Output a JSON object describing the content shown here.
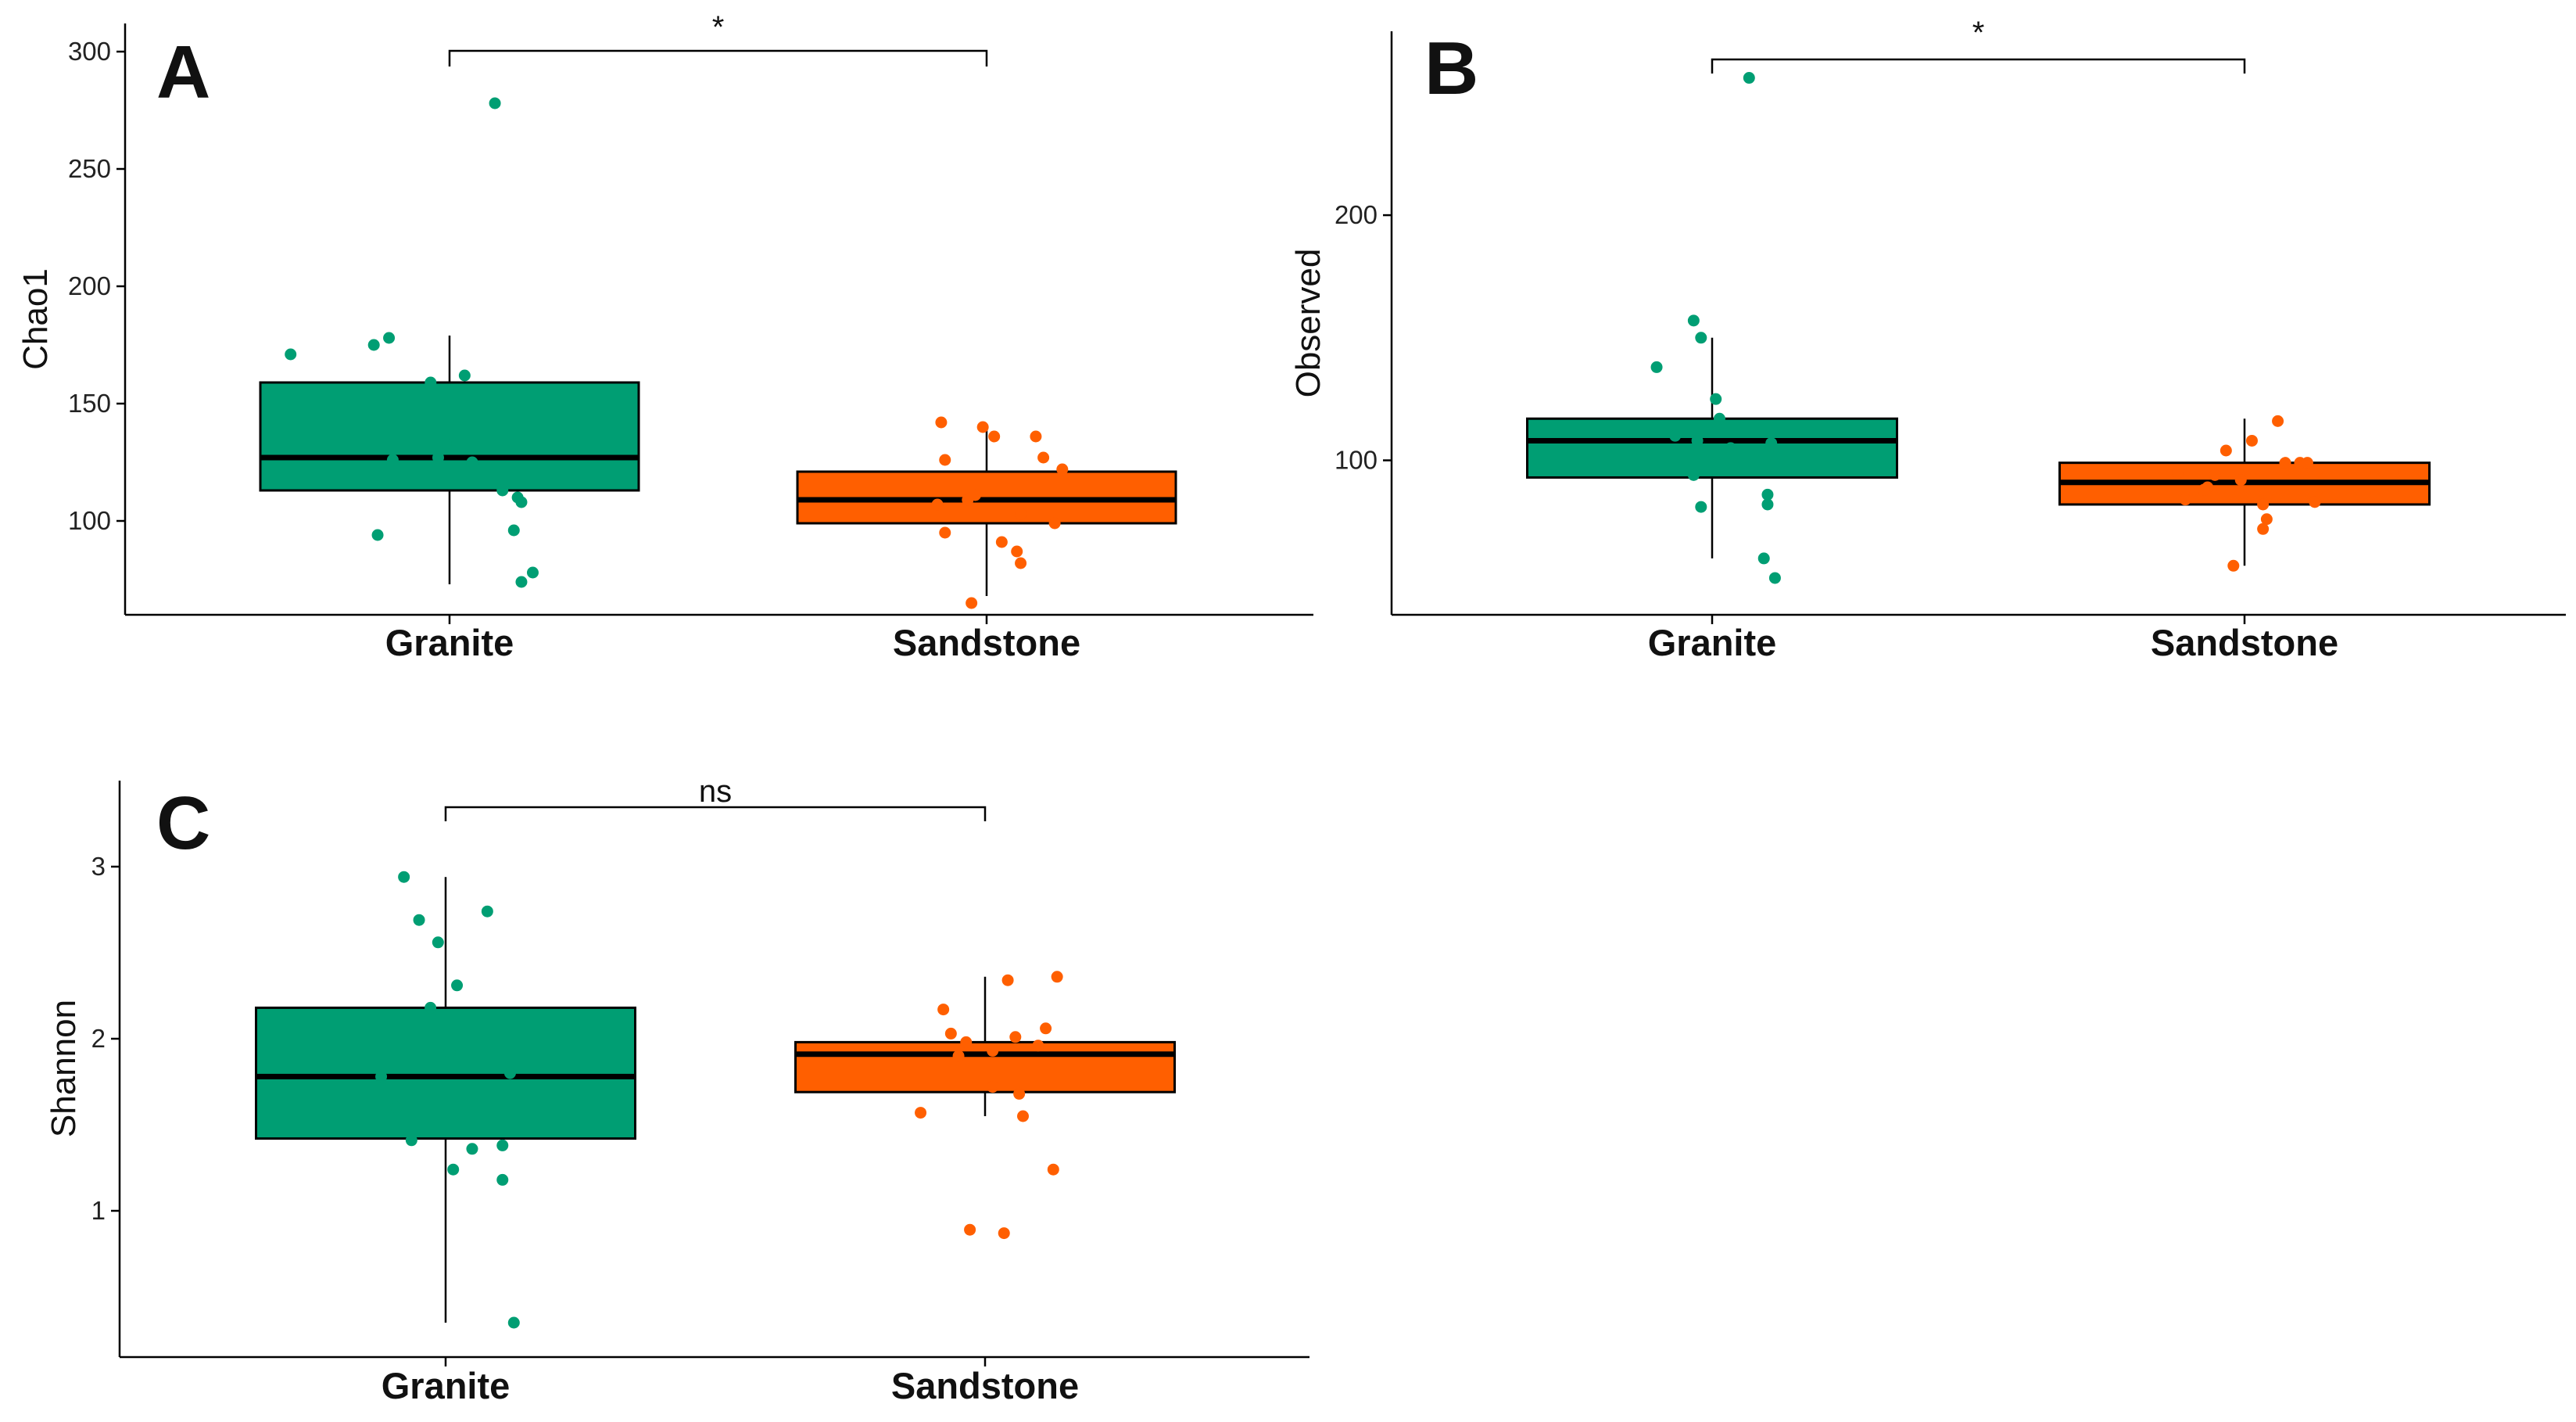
{
  "colors": {
    "granite": "#009E73",
    "sandstone": "#FF5F00",
    "median": "#000000",
    "axis": "#000000"
  },
  "chart_data": [
    {
      "type": "box",
      "panel": "A",
      "ylabel": "Chao1",
      "categories": [
        "Granite",
        "Sandstone"
      ],
      "ylim": [
        60,
        312
      ],
      "yticks": [
        100,
        150,
        200,
        250,
        300
      ],
      "significance": "*",
      "boxes": [
        {
          "name": "Granite",
          "whisker_low": 73,
          "q1": 113,
          "median": 127,
          "q3": 159,
          "whisker_high": 179
        },
        {
          "name": "Sandstone",
          "whisker_low": 68,
          "q1": 99,
          "median": 109,
          "q3": 121,
          "whisker_high": 141
        }
      ],
      "points": [
        [
          173,
          278
        ],
        [
          175,
          172
        ],
        [
          176,
          180
        ],
        [
          173,
          174
        ],
        [
          178,
          160
        ],
        [
          180,
          126
        ],
        [
          184,
          163
        ],
        [
          176,
          128
        ],
        [
          178,
          122
        ],
        [
          183,
          112
        ],
        [
          175,
          94
        ],
        [
          189,
          108
        ],
        [
          190,
          110
        ],
        [
          185,
          96
        ],
        [
          194,
          77
        ],
        [
          190,
          74
        ],
        [
          182,
          113
        ]
      ],
      "points_series": [
        {
          "name": "Granite",
          "points": [
            [
              -0.42,
              171
            ],
            [
              -0.2,
              175
            ],
            [
              -0.16,
              178
            ],
            [
              -0.05,
              159
            ],
            [
              0.04,
              162
            ],
            [
              -0.03,
              127
            ],
            [
              0.06,
              125
            ],
            [
              0.14,
              113
            ],
            [
              0.18,
              110
            ],
            [
              0.19,
              108
            ],
            [
              -0.19,
              94
            ],
            [
              0.17,
              96
            ],
            [
              0.22,
              78
            ],
            [
              0.19,
              74
            ],
            [
              0.12,
              278
            ],
            [
              -0.15,
              126
            ],
            [
              -0.01,
              133
            ]
          ]
        },
        {
          "name": "Sandstone",
          "points": [
            [
              -0.12,
              142
            ],
            [
              -0.01,
              140
            ],
            [
              0.02,
              136
            ],
            [
              0.13,
              136
            ],
            [
              0.15,
              127
            ],
            [
              -0.11,
              126
            ],
            [
              0.2,
              122
            ],
            [
              -0.03,
              111
            ],
            [
              -0.05,
              109
            ],
            [
              -0.13,
              107
            ],
            [
              0.09,
              103
            ],
            [
              0.18,
              99
            ],
            [
              -0.11,
              95
            ],
            [
              0.04,
              91
            ],
            [
              0.08,
              87
            ],
            [
              0.09,
              82
            ],
            [
              -0.04,
              65
            ]
          ]
        }
      ]
    },
    {
      "type": "box",
      "panel": "B",
      "ylabel": "Observed",
      "categories": [
        "Granite",
        "Sandstone"
      ],
      "ylim": [
        37,
        275
      ],
      "yticks": [
        100,
        200
      ],
      "significance": "*",
      "boxes": [
        {
          "name": "Granite",
          "whisker_low": 60,
          "q1": 93,
          "median": 108,
          "q3": 117,
          "whisker_high": 150
        },
        {
          "name": "Sandstone",
          "whisker_low": 57,
          "q1": 82,
          "median": 91,
          "q3": 99,
          "whisker_high": 117
        }
      ],
      "points_series": [
        {
          "name": "Granite",
          "points": [
            [
              0.1,
              256
            ],
            [
              -0.05,
              157
            ],
            [
              -0.03,
              150
            ],
            [
              -0.15,
              138
            ],
            [
              0.01,
              125
            ],
            [
              0.02,
              117
            ],
            [
              -0.04,
              108
            ],
            [
              0.16,
              107
            ],
            [
              -0.05,
              94
            ],
            [
              0.15,
              86
            ],
            [
              0.15,
              82
            ],
            [
              -0.03,
              81
            ],
            [
              0.14,
              60
            ],
            [
              0.17,
              52
            ],
            [
              0.05,
              105
            ],
            [
              -0.1,
              110
            ]
          ]
        },
        {
          "name": "Sandstone",
          "points": [
            [
              0.09,
              116
            ],
            [
              0.02,
              108
            ],
            [
              -0.05,
              104
            ],
            [
              0.15,
              99
            ],
            [
              0.17,
              99
            ],
            [
              0.11,
              99
            ],
            [
              -0.08,
              94
            ],
            [
              -0.1,
              89
            ],
            [
              -0.18,
              95
            ],
            [
              -0.11,
              88
            ],
            [
              -0.16,
              84
            ],
            [
              0.05,
              82
            ],
            [
              0.06,
              76
            ],
            [
              0.05,
              72
            ],
            [
              -0.03,
              57
            ],
            [
              0.19,
              83
            ],
            [
              -0.01,
              92
            ]
          ]
        }
      ]
    },
    {
      "type": "box",
      "panel": "C",
      "ylabel": "Shannon",
      "categories": [
        "Granite",
        "Sandstone"
      ],
      "ylim": [
        0.15,
        3.5
      ],
      "yticks": [
        1,
        2,
        3
      ],
      "significance": "ns",
      "boxes": [
        {
          "name": "Granite",
          "whisker_low": 0.35,
          "q1": 1.42,
          "median": 1.78,
          "q3": 2.18,
          "whisker_high": 2.94
        },
        {
          "name": "Sandstone",
          "whisker_low": 1.55,
          "q1": 1.69,
          "median": 1.91,
          "q3": 1.98,
          "whisker_high": 2.36
        }
      ],
      "points_series": [
        {
          "name": "Granite",
          "points": [
            [
              -0.11,
              2.94
            ],
            [
              -0.07,
              2.69
            ],
            [
              0.11,
              2.74
            ],
            [
              -0.02,
              2.56
            ],
            [
              0.03,
              2.31
            ],
            [
              -0.04,
              2.18
            ],
            [
              -0.17,
              1.78
            ],
            [
              0.17,
              1.8
            ],
            [
              -0.09,
              1.41
            ],
            [
              0.07,
              1.36
            ],
            [
              0.15,
              1.38
            ],
            [
              0.02,
              1.24
            ],
            [
              0.15,
              1.18
            ],
            [
              0.18,
              0.35
            ],
            [
              0.01,
              1.92
            ],
            [
              -0.13,
              1.6
            ]
          ]
        },
        {
          "name": "Sandstone",
          "points": [
            [
              0.19,
              2.36
            ],
            [
              0.06,
              2.34
            ],
            [
              -0.11,
              2.17
            ],
            [
              0.16,
              2.06
            ],
            [
              -0.09,
              2.03
            ],
            [
              0.08,
              2.01
            ],
            [
              -0.05,
              1.98
            ],
            [
              0.02,
              1.93
            ],
            [
              -0.07,
              1.9
            ],
            [
              0.09,
              1.68
            ],
            [
              0.02,
              1.72
            ],
            [
              0.1,
              1.55
            ],
            [
              -0.17,
              1.57
            ],
            [
              0.18,
              1.24
            ],
            [
              -0.04,
              0.89
            ],
            [
              0.05,
              0.87
            ],
            [
              0.14,
              1.96
            ]
          ]
        }
      ]
    }
  ]
}
